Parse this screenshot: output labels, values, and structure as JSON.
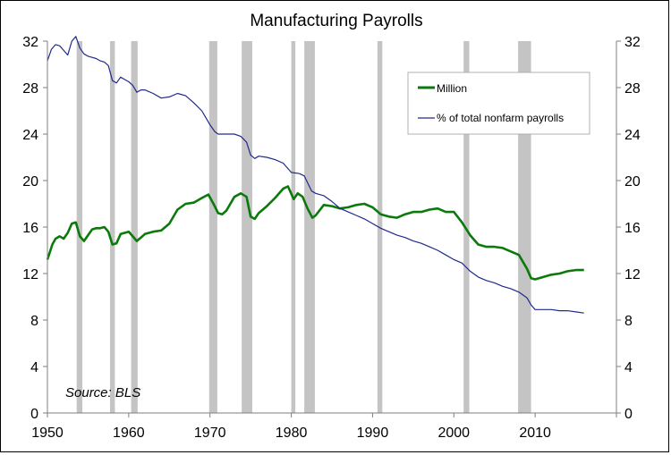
{
  "chart_data": {
    "type": "line",
    "title": "Manufacturing Payrolls",
    "annotation": "Source: BLS",
    "xlim": [
      1950,
      2020
    ],
    "ylim": [
      0,
      32
    ],
    "y2lim": [
      0,
      32
    ],
    "x_ticks": [
      1950,
      1960,
      1970,
      1980,
      1990,
      2000,
      2010
    ],
    "y_ticks": [
      0,
      4,
      8,
      12,
      16,
      20,
      24,
      28,
      32
    ],
    "y2_ticks": [
      0,
      4,
      8,
      12,
      16,
      20,
      24,
      28,
      32
    ],
    "grid": false,
    "legend_position": "top-right",
    "recessions": [
      [
        1953.6,
        1954.3
      ],
      [
        1957.7,
        1958.3
      ],
      [
        1960.3,
        1961.1
      ],
      [
        1969.9,
        1970.9
      ],
      [
        1973.9,
        1975.2
      ],
      [
        1980.0,
        1980.5
      ],
      [
        1981.6,
        1982.9
      ],
      [
        1990.6,
        1991.2
      ],
      [
        2001.2,
        2001.9
      ],
      [
        2007.9,
        2009.5
      ]
    ],
    "colors": {
      "million": "#0b7a0b",
      "percent": "#1f2a8c",
      "recession": "#c4c4c4"
    },
    "series": [
      {
        "name": "Million",
        "axis": "left",
        "x": [
          1950.0,
          1950.6,
          1951.0,
          1951.5,
          1952.0,
          1952.5,
          1953.0,
          1953.5,
          1954.0,
          1954.5,
          1955.0,
          1955.5,
          1956.0,
          1956.5,
          1957.0,
          1957.5,
          1958.0,
          1958.5,
          1959.0,
          1959.5,
          1960.0,
          1960.5,
          1961.0,
          1961.5,
          1962.0,
          1963.0,
          1964.0,
          1965.0,
          1966.0,
          1967.0,
          1968.0,
          1969.0,
          1969.8,
          1970.5,
          1971.0,
          1971.5,
          1972.0,
          1973.0,
          1973.8,
          1974.5,
          1975.0,
          1975.5,
          1976.0,
          1977.0,
          1978.0,
          1979.0,
          1979.6,
          1980.3,
          1980.8,
          1981.4,
          1982.0,
          1982.6,
          1983.0,
          1984.0,
          1985.0,
          1986.0,
          1987.0,
          1988.0,
          1989.0,
          1990.0,
          1991.0,
          1992.0,
          1993.0,
          1994.0,
          1995.0,
          1996.0,
          1997.0,
          1998.0,
          1999.0,
          2000.0,
          2001.0,
          2002.0,
          2003.0,
          2004.0,
          2005.0,
          2006.0,
          2007.0,
          2008.0,
          2009.0,
          2009.5,
          2010.0,
          2011.0,
          2012.0,
          2013.0,
          2014.0,
          2015.0,
          2016.0
        ],
        "values": [
          13.2,
          14.5,
          15.0,
          15.2,
          15.0,
          15.5,
          16.3,
          16.4,
          15.2,
          14.8,
          15.3,
          15.8,
          15.9,
          15.9,
          16.0,
          15.6,
          14.5,
          14.6,
          15.4,
          15.5,
          15.6,
          15.2,
          14.8,
          15.1,
          15.4,
          15.6,
          15.7,
          16.3,
          17.5,
          18.0,
          18.1,
          18.5,
          18.8,
          17.9,
          17.2,
          17.1,
          17.4,
          18.6,
          18.9,
          18.6,
          16.9,
          16.7,
          17.2,
          17.8,
          18.5,
          19.3,
          19.5,
          18.4,
          18.9,
          18.6,
          17.6,
          16.8,
          17.0,
          17.9,
          17.8,
          17.6,
          17.7,
          17.9,
          18.0,
          17.7,
          17.1,
          16.9,
          16.8,
          17.1,
          17.3,
          17.3,
          17.5,
          17.6,
          17.3,
          17.3,
          16.4,
          15.3,
          14.5,
          14.3,
          14.3,
          14.2,
          13.9,
          13.6,
          12.4,
          11.6,
          11.5,
          11.7,
          11.9,
          12.0,
          12.2,
          12.3,
          12.3
        ]
      },
      {
        "name": "% of total nonfarm payrolls",
        "axis": "right",
        "x": [
          1950.0,
          1950.5,
          1951.0,
          1951.5,
          1952.0,
          1952.5,
          1953.0,
          1953.5,
          1954.0,
          1954.5,
          1955.0,
          1955.5,
          1956.0,
          1956.5,
          1957.0,
          1957.5,
          1958.0,
          1958.5,
          1959.0,
          1959.5,
          1960.0,
          1960.5,
          1961.0,
          1961.5,
          1962.0,
          1963.0,
          1964.0,
          1965.0,
          1966.0,
          1967.0,
          1968.0,
          1969.0,
          1970.0,
          1970.6,
          1971.0,
          1972.0,
          1973.0,
          1973.8,
          1974.5,
          1975.0,
          1975.5,
          1976.0,
          1977.0,
          1978.0,
          1979.0,
          1980.0,
          1981.0,
          1981.6,
          1982.5,
          1983.0,
          1984.0,
          1985.0,
          1986.0,
          1987.0,
          1988.0,
          1989.0,
          1990.0,
          1991.0,
          1992.0,
          1993.0,
          1994.0,
          1995.0,
          1996.0,
          1997.0,
          1998.0,
          1999.0,
          2000.0,
          2001.0,
          2002.0,
          2003.0,
          2004.0,
          2005.0,
          2006.0,
          2007.0,
          2008.0,
          2009.0,
          2009.5,
          2010.0,
          2011.0,
          2012.0,
          2013.0,
          2014.0,
          2015.0,
          2016.0
        ],
        "values": [
          30.3,
          31.3,
          31.7,
          31.6,
          31.2,
          30.8,
          32.0,
          32.4,
          31.4,
          30.9,
          30.7,
          30.6,
          30.5,
          30.3,
          30.2,
          29.9,
          28.6,
          28.4,
          28.9,
          28.7,
          28.5,
          28.2,
          27.6,
          27.8,
          27.8,
          27.5,
          27.1,
          27.2,
          27.5,
          27.3,
          26.7,
          26.0,
          24.8,
          24.2,
          24.0,
          24.0,
          24.0,
          23.8,
          23.3,
          22.2,
          21.9,
          22.1,
          22.0,
          21.8,
          21.5,
          20.7,
          20.6,
          20.4,
          19.1,
          18.9,
          18.7,
          18.2,
          17.6,
          17.3,
          17.0,
          16.7,
          16.3,
          15.9,
          15.6,
          15.3,
          15.1,
          14.8,
          14.6,
          14.3,
          14.0,
          13.6,
          13.2,
          12.9,
          12.2,
          11.7,
          11.4,
          11.2,
          10.9,
          10.7,
          10.4,
          9.9,
          9.3,
          8.9,
          8.9,
          8.9,
          8.8,
          8.8,
          8.7,
          8.6
        ]
      }
    ]
  }
}
